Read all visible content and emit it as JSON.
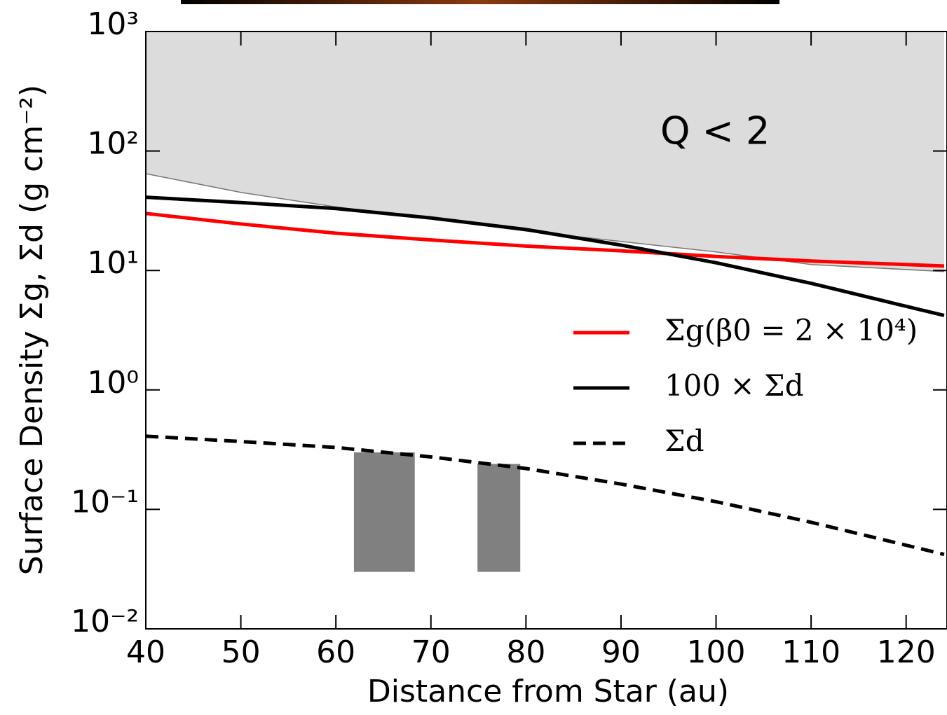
{
  "chart_data": {
    "type": "line",
    "xlabel": "Distance from Star (au)",
    "ylabel": "Surface Density Σg, Σd (g cm⁻²)",
    "x": [
      40,
      50,
      60,
      70,
      80,
      90,
      100,
      110,
      124
    ],
    "xlim": [
      40,
      124.3
    ],
    "ylim": [
      0.01,
      1000
    ],
    "yscale": "log",
    "xticks": [
      40,
      50,
      60,
      70,
      80,
      90,
      100,
      110,
      120
    ],
    "yticks": [
      {
        "value": 0.01,
        "label": "10⁻²"
      },
      {
        "value": 0.1,
        "label": "10⁻¹"
      },
      {
        "value": 1,
        "label": "10⁰"
      },
      {
        "value": 10,
        "label": "10¹"
      },
      {
        "value": 100,
        "label": "10²"
      },
      {
        "value": 1000,
        "label": "10³"
      }
    ],
    "series": [
      {
        "name": "Σg(β0 = 2 × 10⁴)",
        "color": "#ff0000",
        "dash": false,
        "values": [
          30,
          24.5,
          20.5,
          18,
          16,
          14.6,
          13.1,
          12,
          10.9
        ]
      },
      {
        "name": "100 × Σd",
        "color": "#000000",
        "dash": false,
        "values": [
          41,
          37,
          33,
          27.5,
          22,
          16.3,
          11.6,
          7.8,
          4.2
        ]
      },
      {
        "name": "Σd",
        "color": "#000000",
        "dash": true,
        "values": [
          0.41,
          0.37,
          0.33,
          0.275,
          0.22,
          0.163,
          0.116,
          0.078,
          0.042
        ]
      }
    ],
    "shaded_region": {
      "label": "Q < 2",
      "color": "#dcdcdc",
      "edge_color": "#777777",
      "values": [
        64.6,
        45,
        34,
        27,
        21.4,
        17.5,
        14.3,
        11.2,
        9.8
      ]
    },
    "bars_color": "#808080",
    "bars": [
      {
        "x0": 61.9,
        "x1": 68.3,
        "bottom": 0.03,
        "top": 0.3
      },
      {
        "x0": 74.9,
        "x1": 79.4,
        "bottom": 0.03,
        "top": 0.24
      }
    ]
  }
}
